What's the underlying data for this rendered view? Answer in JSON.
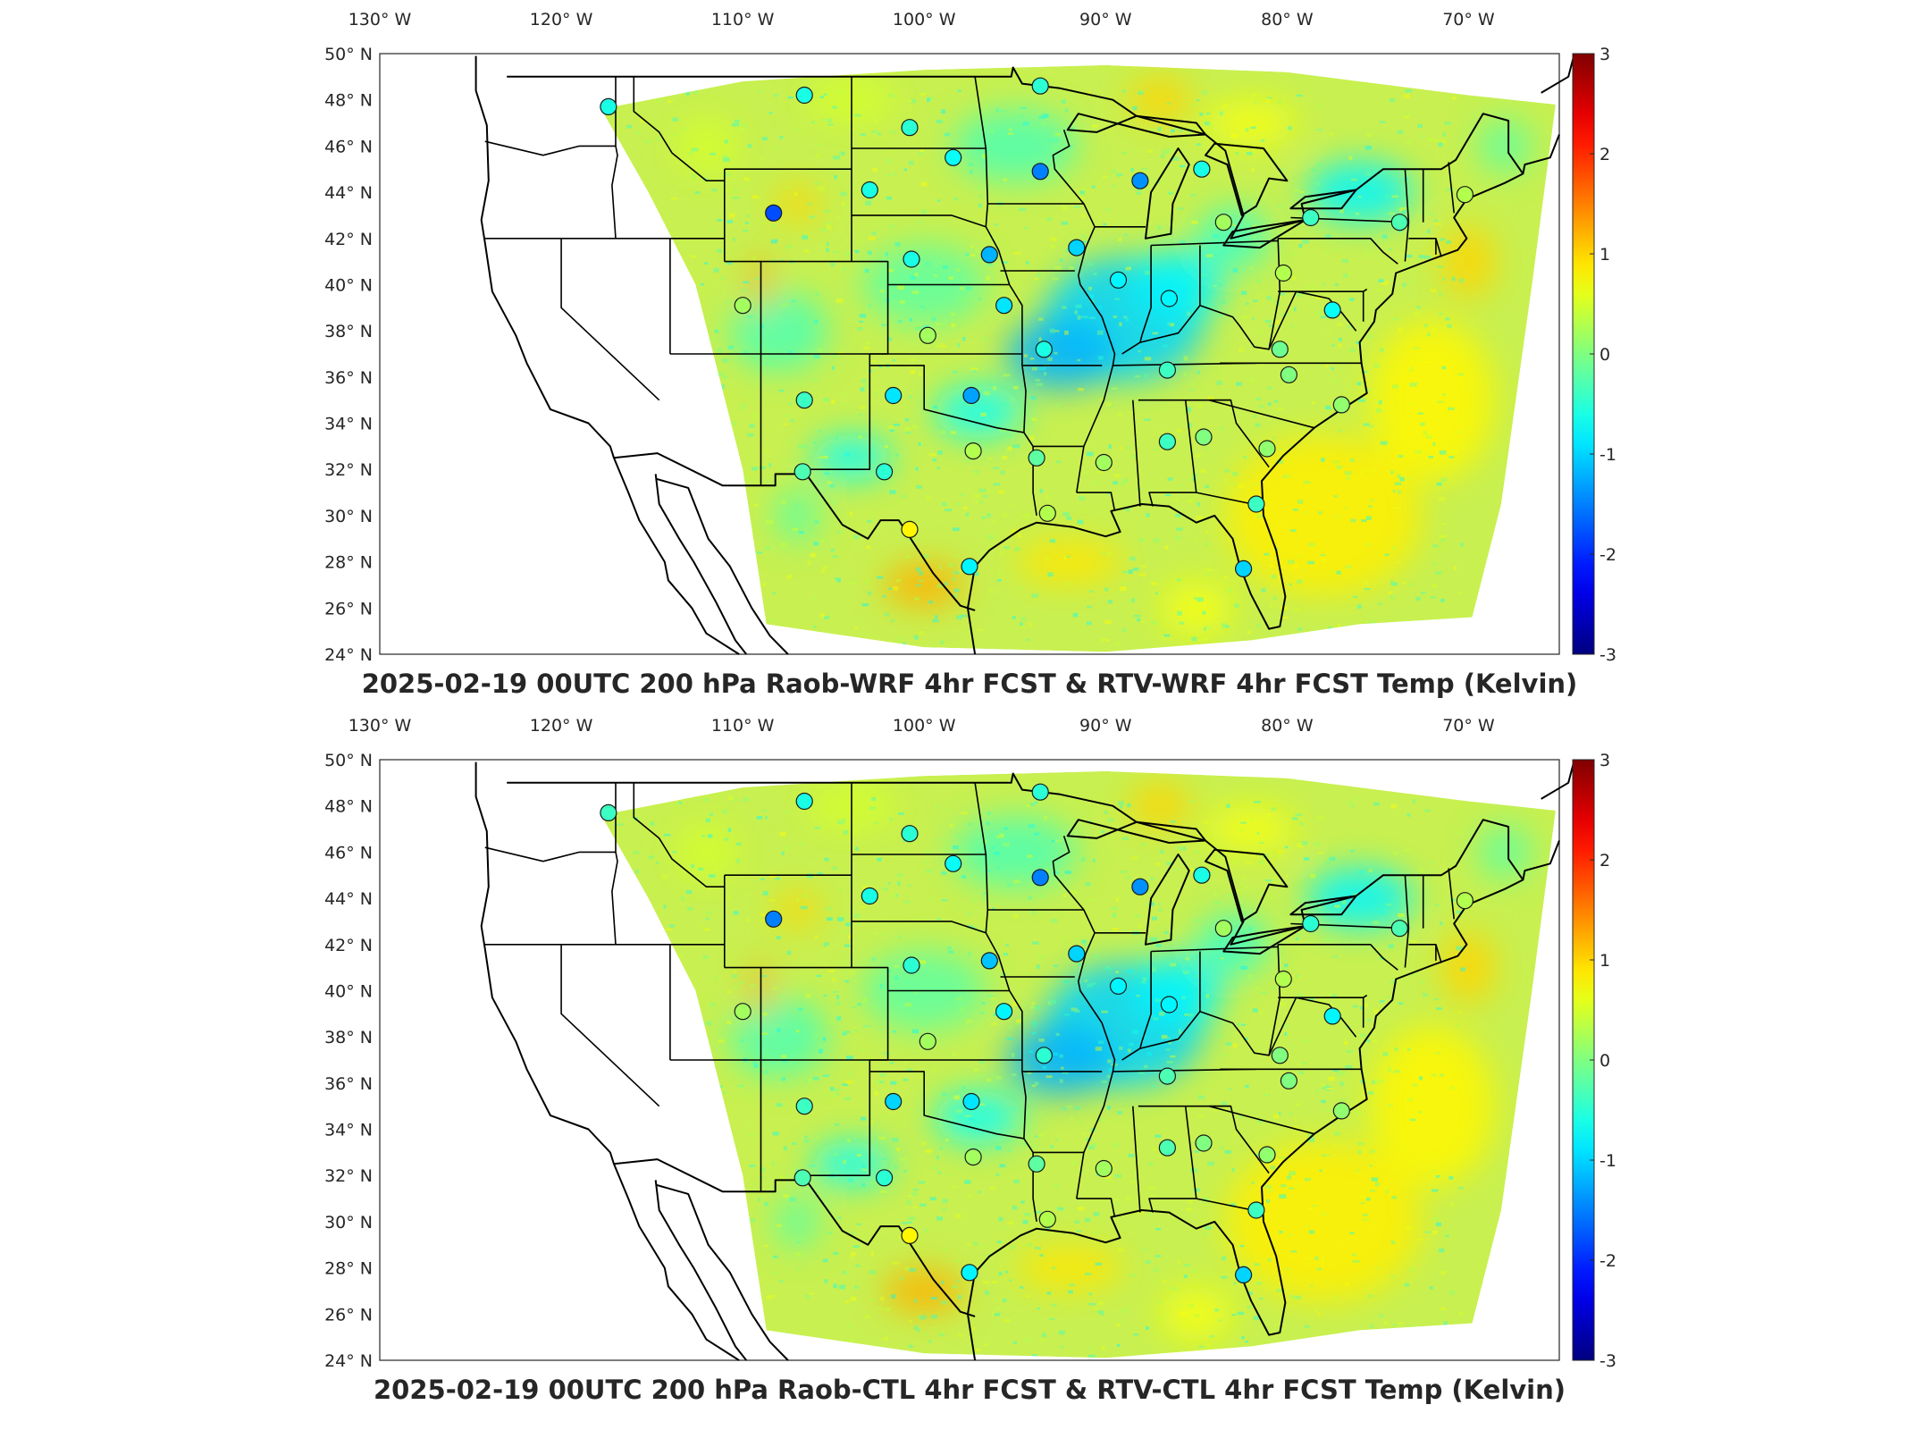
{
  "panels": [
    {
      "id": "top",
      "title": "2025-02-19 00UTC 200 hPa Raob-WRF 4hr FCST & RTV-WRF 4hr FCST Temp (Kelvin)"
    },
    {
      "id": "bottom",
      "title": "2025-02-19 00UTC 200 hPa Raob-CTL 4hr FCST & RTV-CTL 4hr FCST Temp (Kelvin)"
    }
  ],
  "axes": {
    "lon_ticks": [
      "130° W",
      "120° W",
      "110° W",
      "100° W",
      "90° W",
      "80° W",
      "70° W"
    ],
    "lat_ticks": [
      "50° N",
      "48° N",
      "46° N",
      "44° N",
      "42° N",
      "40° N",
      "38° N",
      "36° N",
      "34° N",
      "32° N",
      "30° N",
      "28° N",
      "26° N",
      "24° N"
    ]
  },
  "colorbar": {
    "ticks": [
      "3",
      "2",
      "1",
      "0",
      "-1",
      "-2",
      "-3"
    ],
    "colormap": "jet",
    "range": [
      -3,
      3
    ]
  },
  "colors": {
    "field_base": "#c8f050",
    "cold": "#28a0ff",
    "warm": "#ffb020",
    "marker_outline": "#1a1a1a"
  },
  "chart_data": [
    {
      "type": "map",
      "title": "2025-02-19 00UTC 200 hPa Raob-WRF 4hr FCST & RTV-WRF 4hr FCST Temp (Kelvin)",
      "lon_range": [
        -130,
        -65
      ],
      "lat_range": [
        24,
        50
      ],
      "raob_stations": [
        {
          "lon": -117.4,
          "lat": 47.7,
          "value": -0.6
        },
        {
          "lon": -106.6,
          "lat": 48.2,
          "value": -0.6
        },
        {
          "lon": -100.8,
          "lat": 46.8,
          "value": -0.5
        },
        {
          "lon": -93.6,
          "lat": 48.6,
          "value": -0.5
        },
        {
          "lon": -98.4,
          "lat": 45.5,
          "value": -0.7
        },
        {
          "lon": -93.6,
          "lat": 44.9,
          "value": -1.5
        },
        {
          "lon": -88.1,
          "lat": 44.5,
          "value": -1.4
        },
        {
          "lon": -84.7,
          "lat": 45.0,
          "value": -0.6
        },
        {
          "lon": -108.3,
          "lat": 43.1,
          "value": -1.8
        },
        {
          "lon": -103.0,
          "lat": 44.1,
          "value": -0.6
        },
        {
          "lon": -83.5,
          "lat": 42.7,
          "value": 0.2
        },
        {
          "lon": -78.7,
          "lat": 42.9,
          "value": -0.4
        },
        {
          "lon": -73.8,
          "lat": 42.7,
          "value": -0.3
        },
        {
          "lon": -70.2,
          "lat": 43.9,
          "value": 0.3
        },
        {
          "lon": -100.7,
          "lat": 41.1,
          "value": -0.6
        },
        {
          "lon": -96.4,
          "lat": 41.3,
          "value": -1.2
        },
        {
          "lon": -91.6,
          "lat": 41.6,
          "value": -1.0
        },
        {
          "lon": -89.3,
          "lat": 40.2,
          "value": -0.8
        },
        {
          "lon": -80.2,
          "lat": 40.5,
          "value": 0.3
        },
        {
          "lon": -110.0,
          "lat": 39.1,
          "value": 0.2
        },
        {
          "lon": -99.8,
          "lat": 37.8,
          "value": 0.2
        },
        {
          "lon": -95.6,
          "lat": 39.1,
          "value": -0.9
        },
        {
          "lon": -86.5,
          "lat": 39.4,
          "value": -0.8
        },
        {
          "lon": -77.5,
          "lat": 38.9,
          "value": -0.7
        },
        {
          "lon": -93.4,
          "lat": 37.2,
          "value": -0.6
        },
        {
          "lon": -86.6,
          "lat": 36.3,
          "value": -0.4
        },
        {
          "lon": -80.4,
          "lat": 37.2,
          "value": -0.1
        },
        {
          "lon": -79.9,
          "lat": 36.1,
          "value": 0.0
        },
        {
          "lon": -106.6,
          "lat": 35.0,
          "value": -0.4
        },
        {
          "lon": -101.7,
          "lat": 35.2,
          "value": -0.9
        },
        {
          "lon": -97.4,
          "lat": 35.2,
          "value": -1.3
        },
        {
          "lon": -77.0,
          "lat": 34.8,
          "value": 0.1
        },
        {
          "lon": -97.3,
          "lat": 32.8,
          "value": 0.3
        },
        {
          "lon": -93.8,
          "lat": 32.5,
          "value": -0.2
        },
        {
          "lon": -90.1,
          "lat": 32.3,
          "value": 0.2
        },
        {
          "lon": -86.6,
          "lat": 33.2,
          "value": -0.4
        },
        {
          "lon": -84.6,
          "lat": 33.4,
          "value": 0.0
        },
        {
          "lon": -81.1,
          "lat": 32.9,
          "value": 0.1
        },
        {
          "lon": -106.7,
          "lat": 31.9,
          "value": -0.3
        },
        {
          "lon": -102.2,
          "lat": 31.9,
          "value": -0.5
        },
        {
          "lon": -100.8,
          "lat": 29.4,
          "value": 0.8
        },
        {
          "lon": -97.5,
          "lat": 27.8,
          "value": -0.8
        },
        {
          "lon": -93.2,
          "lat": 30.1,
          "value": 0.3
        },
        {
          "lon": -81.7,
          "lat": 30.5,
          "value": -0.4
        },
        {
          "lon": -82.4,
          "lat": 27.7,
          "value": -1.0
        }
      ]
    },
    {
      "type": "map",
      "title": "2025-02-19 00UTC 200 hPa Raob-CTL 4hr FCST & RTV-CTL 4hr FCST Temp (Kelvin)",
      "lon_range": [
        -130,
        -65
      ],
      "lat_range": [
        24,
        50
      ],
      "raob_stations": [
        {
          "lon": -117.4,
          "lat": 47.7,
          "value": -0.4
        },
        {
          "lon": -106.6,
          "lat": 48.2,
          "value": -0.6
        },
        {
          "lon": -100.8,
          "lat": 46.8,
          "value": -0.5
        },
        {
          "lon": -93.6,
          "lat": 48.6,
          "value": -0.5
        },
        {
          "lon": -98.4,
          "lat": 45.5,
          "value": -0.7
        },
        {
          "lon": -93.6,
          "lat": 44.9,
          "value": -1.5
        },
        {
          "lon": -88.1,
          "lat": 44.5,
          "value": -1.4
        },
        {
          "lon": -84.7,
          "lat": 45.0,
          "value": -0.6
        },
        {
          "lon": -108.3,
          "lat": 43.1,
          "value": -1.5
        },
        {
          "lon": -103.0,
          "lat": 44.1,
          "value": -0.6
        },
        {
          "lon": -83.5,
          "lat": 42.7,
          "value": 0.2
        },
        {
          "lon": -78.7,
          "lat": 42.9,
          "value": -0.5
        },
        {
          "lon": -73.8,
          "lat": 42.7,
          "value": -0.3
        },
        {
          "lon": -70.2,
          "lat": 43.9,
          "value": 0.3
        },
        {
          "lon": -100.7,
          "lat": 41.1,
          "value": -0.5
        },
        {
          "lon": -96.4,
          "lat": 41.3,
          "value": -1.1
        },
        {
          "lon": -91.6,
          "lat": 41.6,
          "value": -1.0
        },
        {
          "lon": -89.3,
          "lat": 40.2,
          "value": -0.8
        },
        {
          "lon": -80.2,
          "lat": 40.5,
          "value": 0.3
        },
        {
          "lon": -110.0,
          "lat": 39.1,
          "value": 0.2
        },
        {
          "lon": -99.8,
          "lat": 37.8,
          "value": 0.2
        },
        {
          "lon": -95.6,
          "lat": 39.1,
          "value": -0.8
        },
        {
          "lon": -86.5,
          "lat": 39.4,
          "value": -0.8
        },
        {
          "lon": -77.5,
          "lat": 38.9,
          "value": -0.8
        },
        {
          "lon": -93.4,
          "lat": 37.2,
          "value": -0.5
        },
        {
          "lon": -86.6,
          "lat": 36.3,
          "value": -0.3
        },
        {
          "lon": -80.4,
          "lat": 37.2,
          "value": 0.0
        },
        {
          "lon": -79.9,
          "lat": 36.1,
          "value": 0.0
        },
        {
          "lon": -106.6,
          "lat": 35.0,
          "value": -0.4
        },
        {
          "lon": -101.7,
          "lat": 35.2,
          "value": -1.0
        },
        {
          "lon": -97.4,
          "lat": 35.2,
          "value": -0.9
        },
        {
          "lon": -77.0,
          "lat": 34.8,
          "value": 0.1
        },
        {
          "lon": -97.3,
          "lat": 32.8,
          "value": 0.2
        },
        {
          "lon": -93.8,
          "lat": 32.5,
          "value": -0.2
        },
        {
          "lon": -90.1,
          "lat": 32.3,
          "value": 0.2
        },
        {
          "lon": -86.6,
          "lat": 33.2,
          "value": -0.3
        },
        {
          "lon": -84.6,
          "lat": 33.4,
          "value": 0.0
        },
        {
          "lon": -81.1,
          "lat": 32.9,
          "value": 0.1
        },
        {
          "lon": -106.7,
          "lat": 31.9,
          "value": -0.3
        },
        {
          "lon": -102.2,
          "lat": 31.9,
          "value": -0.5
        },
        {
          "lon": -100.8,
          "lat": 29.4,
          "value": 0.8
        },
        {
          "lon": -97.5,
          "lat": 27.8,
          "value": -0.8
        },
        {
          "lon": -93.2,
          "lat": 30.1,
          "value": 0.3
        },
        {
          "lon": -81.7,
          "lat": 30.5,
          "value": -0.4
        },
        {
          "lon": -82.4,
          "lat": 27.7,
          "value": -1.0
        }
      ]
    }
  ]
}
